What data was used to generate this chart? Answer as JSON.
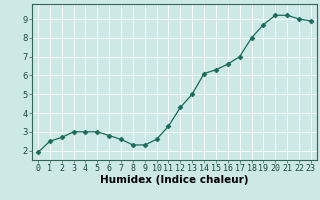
{
  "x": [
    0,
    1,
    2,
    3,
    4,
    5,
    6,
    7,
    8,
    9,
    10,
    11,
    12,
    13,
    14,
    15,
    16,
    17,
    18,
    19,
    20,
    21,
    22,
    23
  ],
  "y": [
    1.9,
    2.5,
    2.7,
    3.0,
    3.0,
    3.0,
    2.8,
    2.6,
    2.3,
    2.3,
    2.6,
    3.3,
    4.3,
    5.0,
    6.1,
    6.3,
    6.6,
    7.0,
    8.0,
    8.7,
    9.2,
    9.2,
    9.0,
    8.9
  ],
  "xlabel": "Humidex (Indice chaleur)",
  "ylim": [
    1.5,
    9.8
  ],
  "xlim": [
    -0.5,
    23.5
  ],
  "yticks": [
    2,
    3,
    4,
    5,
    6,
    7,
    8,
    9
  ],
  "xticks": [
    0,
    1,
    2,
    3,
    4,
    5,
    6,
    7,
    8,
    9,
    10,
    11,
    12,
    13,
    14,
    15,
    16,
    17,
    18,
    19,
    20,
    21,
    22,
    23
  ],
  "line_color": "#1a6b5a",
  "marker": "D",
  "marker_size": 2.5,
  "bg_color": "#cce9e5",
  "grid_color": "#ffffff",
  "tick_fontsize": 6.0,
  "xlabel_fontsize": 7.5
}
